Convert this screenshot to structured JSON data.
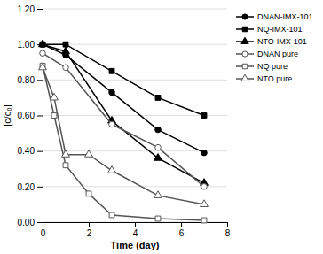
{
  "chart_data": {
    "type": "line",
    "x_label": "Time (day)",
    "y_label": "[c/c₀]",
    "xlim": [
      0,
      8
    ],
    "ylim": [
      0,
      1.2
    ],
    "xticks": [
      0,
      2,
      4,
      6,
      8
    ],
    "yticks": [
      {
        "value": 0,
        "label": "0.00"
      },
      {
        "value": 0.2,
        "label": "0.20"
      },
      {
        "value": 0.4,
        "label": "0.40"
      },
      {
        "value": 0.6,
        "label": "0.60"
      },
      {
        "value": 0.8,
        "label": "0.80"
      },
      {
        "value": 1,
        "label": "1.00"
      },
      {
        "value": 1.2,
        "label": "1.20"
      }
    ],
    "grid": true,
    "legend": "upper right",
    "series": [
      {
        "name": "DNAN-IMX-101",
        "x": [
          0,
          1,
          3,
          5,
          7
        ],
        "values": [
          1,
          0.94,
          0.73,
          0.52,
          0.39
        ],
        "color": "#000000",
        "marker": "circle",
        "line_style": "solid"
      },
      {
        "name": "NQ-IMX-101",
        "x": [
          0,
          1,
          3,
          5,
          7
        ],
        "values": [
          1,
          1,
          0.85,
          0.7,
          0.6
        ],
        "color": "#000000",
        "marker": "square",
        "line_style": "solid"
      },
      {
        "name": "NTO-IMX-101",
        "x": [
          0,
          1,
          3,
          5,
          7
        ],
        "values": [
          1,
          0.96,
          0.57,
          0.36,
          0.22
        ],
        "color": "#000000",
        "marker": "triangle",
        "line_style": "solid"
      },
      {
        "name": "DNAN pure",
        "x": [
          0,
          1,
          3,
          5,
          7
        ],
        "values": [
          0.95,
          0.87,
          0.55,
          0.42,
          0.2
        ],
        "color": "#555555",
        "marker": "circle-open",
        "line_style": "solid"
      },
      {
        "name": "NQ pure",
        "x": [
          0,
          0.5,
          1,
          2,
          3,
          5,
          7
        ],
        "values": [
          0.88,
          0.6,
          0.32,
          0.16,
          0.04,
          0.02,
          0.01
        ],
        "color": "#555555",
        "marker": "square-open",
        "line_style": "solid"
      },
      {
        "name": "NTO pure",
        "x": [
          0,
          0.5,
          1,
          2,
          3,
          5,
          7
        ],
        "values": [
          0.87,
          0.7,
          0.38,
          0.38,
          0.29,
          0.15,
          0.1
        ],
        "color": "#555555",
        "marker": "triangle-open",
        "line_style": "solid"
      }
    ]
  }
}
